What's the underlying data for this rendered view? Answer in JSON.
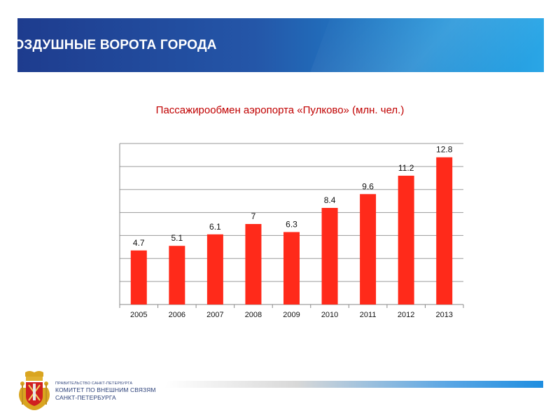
{
  "header": {
    "title": "ВОЗДУШНЫЕ ВОРОТА ГОРОДА"
  },
  "chart_data": {
    "type": "bar",
    "title": "Пассажирообмен аэропорта «Пулково» (млн. чел.)",
    "categories": [
      "2005",
      "2006",
      "2007",
      "2008",
      "2009",
      "2010",
      "2011",
      "2012",
      "2013"
    ],
    "values": [
      4.7,
      5.1,
      6.1,
      7,
      6.3,
      8.4,
      9.6,
      11.2,
      12.8
    ],
    "value_labels": [
      "4.7",
      "5.1",
      "6.1",
      "7",
      "6.3",
      "8.4",
      "9.6",
      "11.2",
      "12.8"
    ],
    "xlabel": "",
    "ylabel": "",
    "ylim": [
      0,
      14
    ],
    "grid": true,
    "bar_color": "#ff2a1a"
  },
  "footer": {
    "line1": "ПРАВИТЕЛЬСТВО САНКТ-ПЕТЕРБУРГА",
    "line2": "КОМИТЕТ ПО ВНЕШНИМ СВЯЗЯМ",
    "line3": "САНКТ-ПЕТЕРБУРГА"
  },
  "colors": {
    "accent": "#c00000",
    "banner": "#2456a8",
    "brand_text": "#2a3f78"
  }
}
